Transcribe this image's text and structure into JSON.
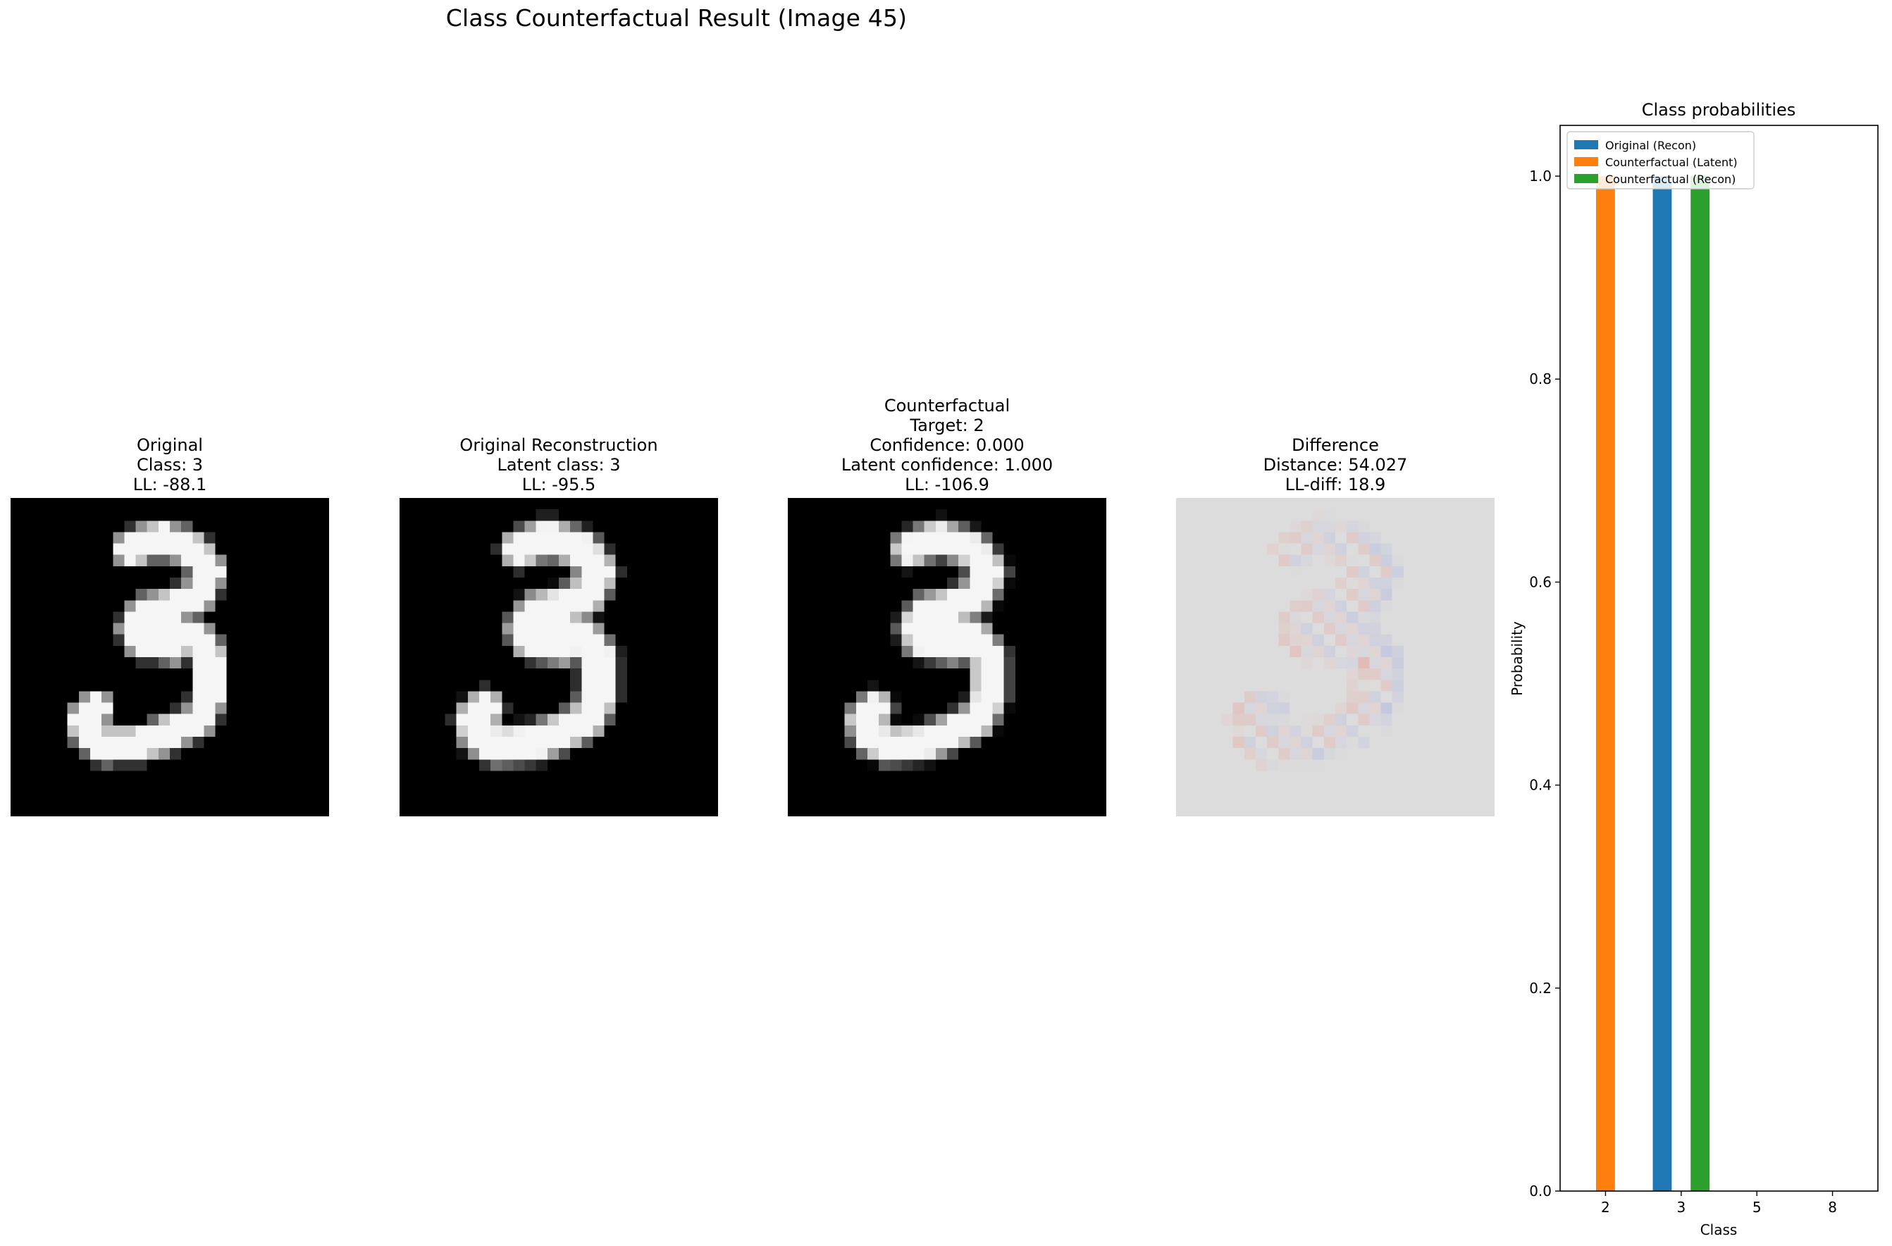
{
  "figure_title": "Class Counterfactual Result (Image 45)",
  "panels": [
    {
      "id": "original",
      "lines": [
        "Original",
        "Class: 3",
        "LL: -88.1"
      ],
      "colormap": "gray"
    },
    {
      "id": "reconstruction",
      "lines": [
        "Original Reconstruction",
        "Latent class: 3",
        "LL: -95.5"
      ],
      "colormap": "gray"
    },
    {
      "id": "counterfactual",
      "lines": [
        "Counterfactual",
        "Target: 2",
        "Confidence: 0.000",
        "Latent confidence: 1.000",
        "LL: -106.9"
      ],
      "colormap": "gray"
    },
    {
      "id": "difference",
      "lines": [
        "Difference",
        "Distance: 54.027",
        "LL-diff: 18.9"
      ],
      "colormap": "coolwarm"
    }
  ],
  "chart_data": {
    "type": "bar",
    "title": "Class probabilities",
    "xlabel": "Class",
    "ylabel": "Probability",
    "categories": [
      "2",
      "3",
      "5",
      "8"
    ],
    "ylim": [
      0,
      1.05
    ],
    "yticks": [
      "0.0",
      "0.2",
      "0.4",
      "0.6",
      "0.8",
      "1.0"
    ],
    "legend_position": "upper-left",
    "series": [
      {
        "name": "Original (Recon)",
        "color": "#1f77b4",
        "values": [
          0.0,
          1.0,
          0.0,
          0.0
        ]
      },
      {
        "name": "Counterfactual (Latent)",
        "color": "#ff7f0e",
        "values": [
          1.0,
          0.0,
          0.0,
          0.0
        ]
      },
      {
        "name": "Counterfactual (Recon)",
        "color": "#2ca02c",
        "values": [
          0.0,
          1.0,
          0.0,
          0.0
        ]
      }
    ]
  }
}
